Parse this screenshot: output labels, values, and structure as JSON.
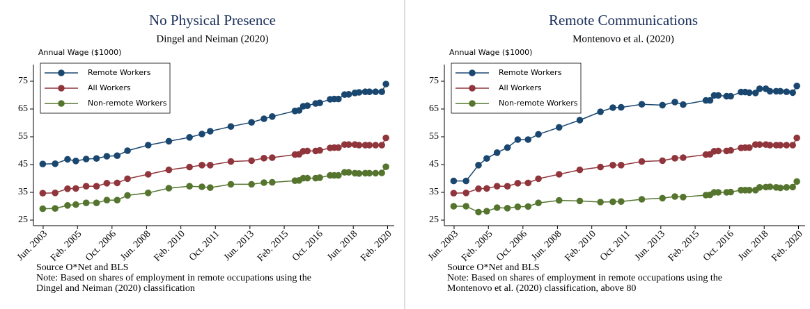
{
  "chart_data": [
    {
      "type": "line",
      "title": "No Physical Presence",
      "subtitle": "Dingel and Neiman (2020)",
      "ylabel": "Annual Wage ($1000)",
      "x": [
        2003.4,
        2004.0,
        2004.6,
        2005.0,
        2005.5,
        2006.0,
        2006.5,
        2007.0,
        2007.5,
        2008.5,
        2009.5,
        2010.5,
        2011.1,
        2011.5,
        2012.5,
        2013.5,
        2014.1,
        2014.5,
        2015.6,
        2015.8,
        2016.0,
        2016.2,
        2016.6,
        2016.8,
        2017.3,
        2017.5,
        2017.7,
        2018.0,
        2018.2,
        2018.5,
        2018.7,
        2019.0,
        2019.2,
        2019.5,
        2019.8,
        2020.0
      ],
      "series": [
        {
          "name": "Remote Workers",
          "color": "#1a476f",
          "values": [
            45.2,
            45.3,
            46.9,
            46.3,
            47,
            47.2,
            48,
            48.2,
            50,
            52,
            53.4,
            54.8,
            56,
            57,
            58.7,
            60.2,
            61.5,
            62.3,
            64.3,
            64.5,
            66,
            66.2,
            67,
            67.2,
            68.5,
            68.6,
            68.6,
            70.2,
            70.3,
            70.8,
            71,
            71.2,
            71.2,
            71.2,
            71.2,
            74
          ]
        },
        {
          "name": "All Workers",
          "color": "#90353b",
          "values": [
            34.7,
            34.8,
            36.3,
            36.4,
            37.2,
            37.2,
            38.3,
            38.4,
            39.9,
            41.5,
            43.1,
            44.1,
            44.8,
            44.8,
            46.1,
            46.4,
            47.3,
            47.5,
            48.6,
            48.7,
            49.8,
            49.9,
            49.9,
            50.1,
            51,
            51.1,
            51.1,
            52.2,
            52.2,
            52.2,
            52,
            52,
            52,
            52,
            52,
            54.6
          ]
        },
        {
          "name": "Non-remote Workers",
          "color": "#55752f",
          "values": [
            29.1,
            29.2,
            30.3,
            30.6,
            31.2,
            31.2,
            32.2,
            32.2,
            33.9,
            34.8,
            36.5,
            37.2,
            37,
            36.7,
            37.9,
            37.9,
            38.5,
            38.6,
            39.2,
            39.3,
            40.1,
            40.1,
            40.1,
            40.3,
            41.1,
            41.1,
            41.1,
            42.2,
            42.2,
            41.9,
            41.8,
            41.9,
            41.9,
            41.9,
            42,
            44.2
          ]
        }
      ],
      "xlim": [
        2003.0,
        2020.4
      ],
      "xticks": [
        {
          "value": 2003.42,
          "label": "Jun. 2003"
        },
        {
          "value": 2005.08,
          "label": "Feb. 2005"
        },
        {
          "value": 2006.75,
          "label": "Oct. 2006"
        },
        {
          "value": 2008.42,
          "label": "Jun. 2008"
        },
        {
          "value": 2010.08,
          "label": "Feb. 2010"
        },
        {
          "value": 2011.75,
          "label": "Oct. 2011"
        },
        {
          "value": 2013.42,
          "label": "Jun. 2013"
        },
        {
          "value": 2015.08,
          "label": "Feb. 2015"
        },
        {
          "value": 2016.75,
          "label": "Oct. 2016"
        },
        {
          "value": 2018.42,
          "label": "Jun. 2018"
        },
        {
          "value": 2020.08,
          "label": "Feb. 2020"
        }
      ],
      "ylim": [
        23,
        81
      ],
      "yticks": [
        25,
        35,
        45,
        55,
        65,
        75
      ],
      "legend": "top-left",
      "notes": [
        "Source O*Net and BLS",
        "Note: Based on shares of employment in remote occupations using the",
        "Dingel and Neiman (2020) classification"
      ]
    },
    {
      "type": "line",
      "title": "Remote Communications",
      "subtitle": "Montenovo et al. (2020)",
      "ylabel": "Annual Wage ($1000)",
      "x": [
        2003.4,
        2004.0,
        2004.6,
        2005.0,
        2005.5,
        2006.0,
        2006.5,
        2007.0,
        2007.5,
        2008.5,
        2009.5,
        2010.5,
        2011.1,
        2011.5,
        2012.5,
        2013.5,
        2014.1,
        2014.5,
        2015.6,
        2015.8,
        2016.0,
        2016.2,
        2016.6,
        2016.8,
        2017.3,
        2017.5,
        2017.7,
        2018.0,
        2018.2,
        2018.5,
        2018.7,
        2019.0,
        2019.2,
        2019.5,
        2019.8,
        2020.0
      ],
      "series": [
        {
          "name": "Remote Workers",
          "color": "#1a476f",
          "values": [
            39.1,
            39.1,
            44.8,
            47.2,
            49.3,
            51.1,
            54,
            54,
            55.9,
            58.4,
            61,
            64,
            65.5,
            65.6,
            66.7,
            66.4,
            67.5,
            66.6,
            68.1,
            68.1,
            69.9,
            69.9,
            69.6,
            69.6,
            71.1,
            71.1,
            70.9,
            70.8,
            72.3,
            72.3,
            71.4,
            71.4,
            71.4,
            71.2,
            70.9,
            73.3
          ]
        },
        {
          "name": "All Workers",
          "color": "#90353b",
          "values": [
            34.7,
            34.8,
            36.3,
            36.4,
            37.2,
            37.2,
            38.3,
            38.4,
            39.9,
            41.5,
            43.1,
            44.1,
            44.8,
            44.8,
            46.1,
            46.4,
            47.3,
            47.5,
            48.6,
            48.7,
            49.8,
            49.9,
            49.9,
            50.1,
            51,
            51.1,
            51.1,
            52.2,
            52.2,
            52.2,
            52,
            52,
            52,
            52,
            52,
            54.6
          ]
        },
        {
          "name": "Non-remote Workers",
          "color": "#55752f",
          "values": [
            30,
            30,
            27.9,
            28.2,
            29.5,
            29.3,
            29.8,
            29.9,
            31.2,
            32.1,
            31.9,
            31.5,
            31.6,
            31.7,
            32.5,
            32.9,
            33.5,
            33.3,
            34,
            34.1,
            35,
            35,
            35,
            35.1,
            35.8,
            35.8,
            35.8,
            35.8,
            36.8,
            36.9,
            37,
            36.8,
            36.6,
            36.8,
            36.9,
            38.9
          ]
        }
      ],
      "xlim": [
        2003.0,
        2020.4
      ],
      "xticks": [
        {
          "value": 2003.42,
          "label": "Jun. 2003"
        },
        {
          "value": 2005.08,
          "label": "Feb. 2005"
        },
        {
          "value": 2006.75,
          "label": "Oct. 2006"
        },
        {
          "value": 2008.42,
          "label": "Jun. 2008"
        },
        {
          "value": 2010.08,
          "label": "Feb. 2010"
        },
        {
          "value": 2011.75,
          "label": "Oct. 2011"
        },
        {
          "value": 2013.42,
          "label": "Jun. 2013"
        },
        {
          "value": 2015.08,
          "label": "Feb. 2015"
        },
        {
          "value": 2016.75,
          "label": "Oct. 2016"
        },
        {
          "value": 2018.42,
          "label": "Jun. 2018"
        },
        {
          "value": 2020.08,
          "label": "Feb. 2020"
        }
      ],
      "ylim": [
        23,
        81
      ],
      "yticks": [
        25,
        35,
        45,
        55,
        65,
        75
      ],
      "legend": "top-left",
      "notes": [
        "Source O*Net and BLS",
        "Note: Based on shares of employment in remote occupations using the",
        "Montenovo et al. (2020) classification, above 80"
      ]
    }
  ]
}
